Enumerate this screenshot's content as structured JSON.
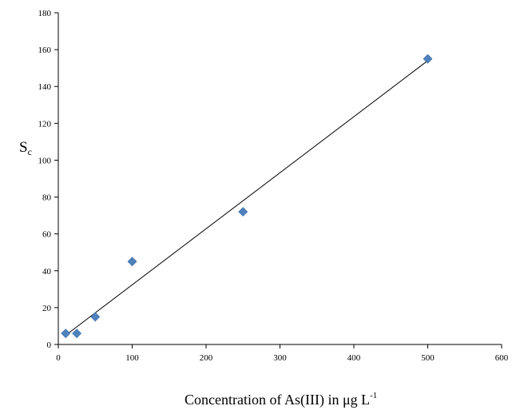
{
  "chart_data": {
    "type": "scatter",
    "title": "",
    "ylabel_main": "S",
    "ylabel_sub": "c",
    "xlabel_main": "Concentration of As(III) in μg L",
    "xlabel_sup": "-1",
    "xlim": [
      0,
      600
    ],
    "ylim": [
      0,
      180
    ],
    "xticks": [
      0,
      100,
      200,
      300,
      400,
      500,
      600
    ],
    "yticks": [
      0,
      20,
      40,
      60,
      80,
      100,
      120,
      140,
      160,
      180
    ],
    "grid": false,
    "legend": "none",
    "marker": "diamond",
    "marker_color": "#4F81BD",
    "trendline": {
      "type": "linear",
      "from": [
        10,
        5
      ],
      "to": [
        500,
        154
      ],
      "color": "#000000"
    },
    "series": [
      {
        "x": [
          10,
          25,
          50,
          100,
          250,
          500
        ],
        "y": [
          6,
          6,
          15,
          45,
          72,
          155
        ]
      }
    ]
  }
}
